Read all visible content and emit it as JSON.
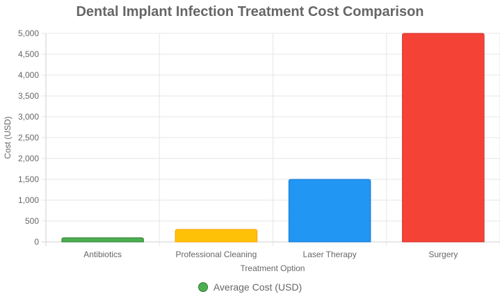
{
  "chart_data": {
    "type": "bar",
    "title": "Dental Implant Infection Treatment Cost Comparison",
    "xlabel": "Treatment Option",
    "ylabel": "Cost (USD)",
    "categories": [
      "Antibiotics",
      "Professional Cleaning",
      "Laser Therapy",
      "Surgery"
    ],
    "series": [
      {
        "name": "Average Cost (USD)",
        "values": [
          100,
          300,
          1500,
          5000
        ],
        "colors": [
          "#4caf50",
          "#ffc107",
          "#2196f3",
          "#f44336"
        ],
        "border_colors": [
          "#2e7d32",
          "#ffa000",
          "#1976d2",
          "#d32f2f"
        ]
      }
    ],
    "ylim": [
      0,
      5000
    ],
    "yticks": [
      0,
      500,
      1000,
      1500,
      2000,
      2500,
      3000,
      3500,
      4000,
      4500,
      5000
    ],
    "ytick_labels": [
      "0",
      "500",
      "1,000",
      "1,500",
      "2,000",
      "2,500",
      "3,000",
      "3,500",
      "4,000",
      "4,500",
      "5,000"
    ],
    "grid": true,
    "legend_position": "bottom",
    "legend_color": "#4caf50"
  }
}
